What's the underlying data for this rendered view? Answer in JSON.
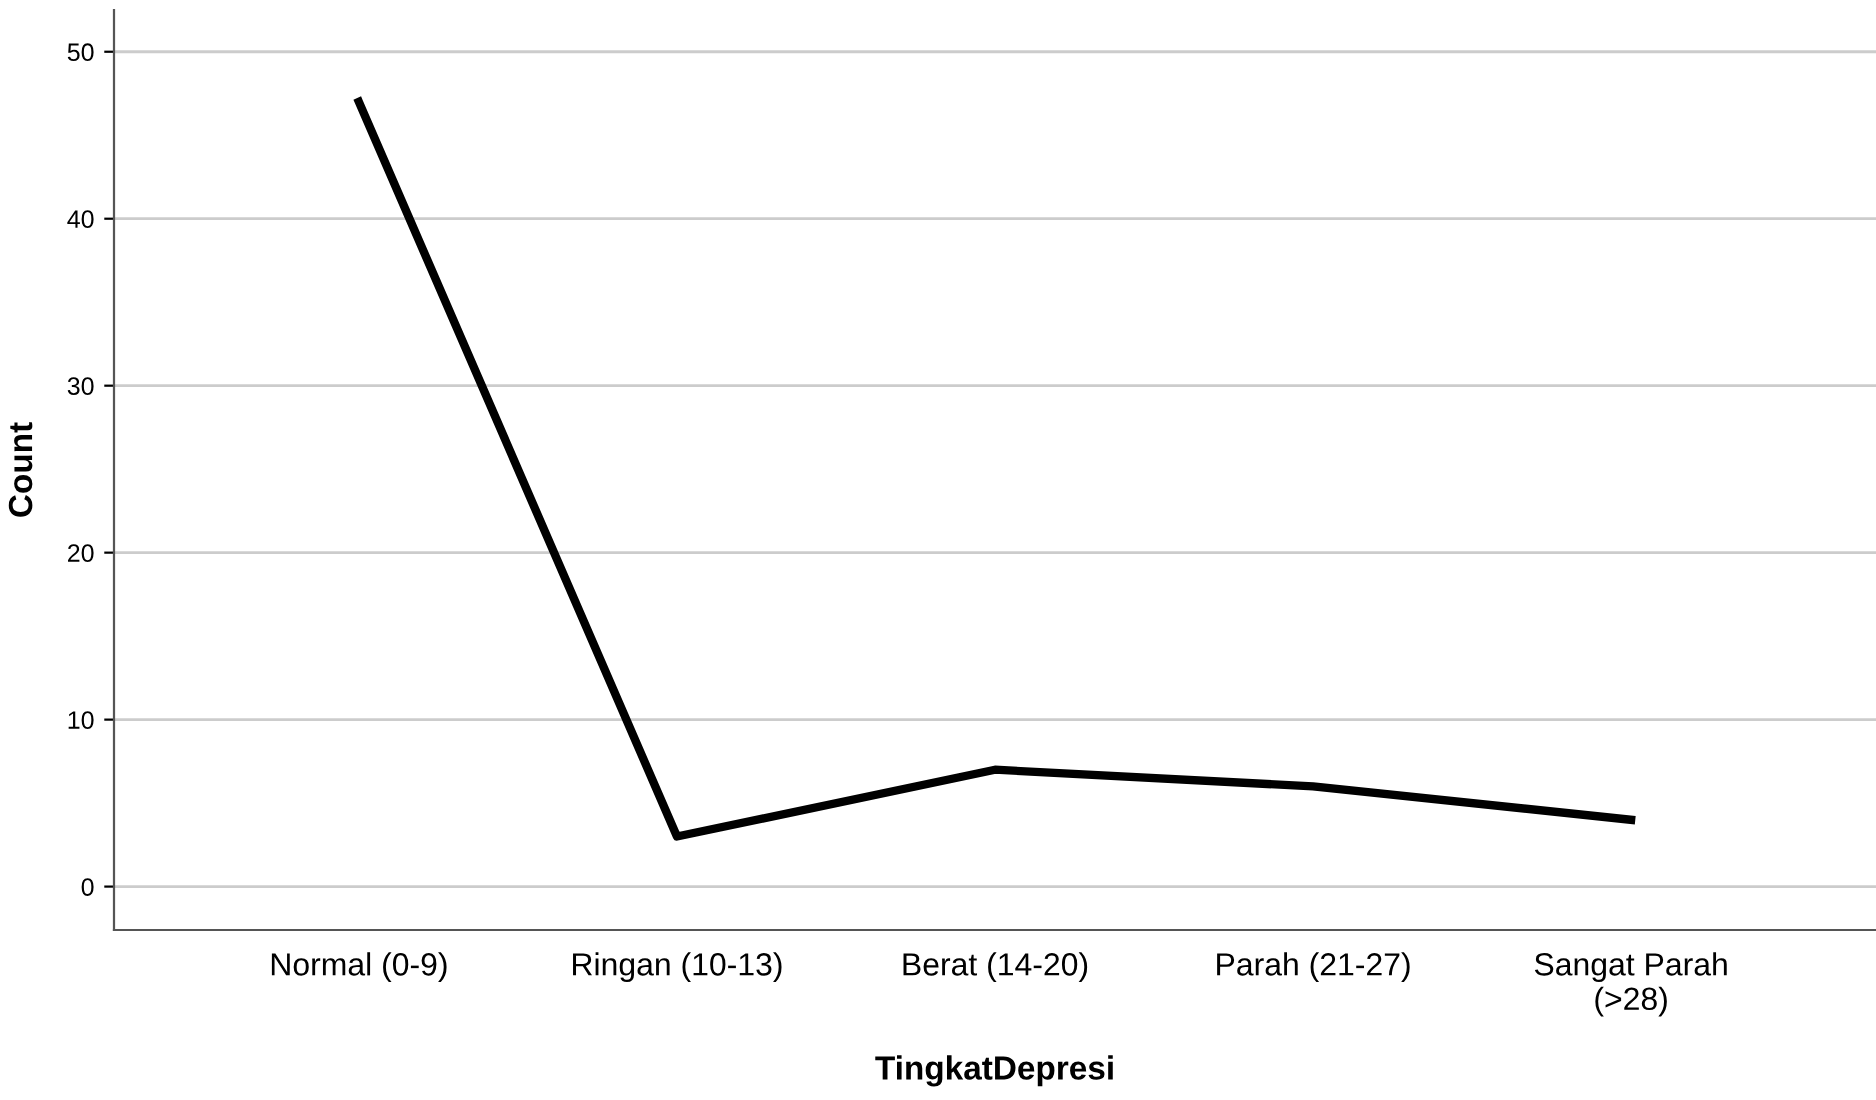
{
  "chart_data": {
    "type": "line",
    "xlabel": "TingkatDepresi",
    "ylabel": "Count",
    "categories": [
      "Normal (0-9)",
      "Ringan (10-13)",
      "Berat (14-20)",
      "Parah (21-27)",
      "Sangat Parah (>28)"
    ],
    "series": [
      {
        "color": "#000000",
        "values": [
          47,
          3,
          7,
          6,
          4
        ]
      }
    ],
    "ylim": [
      -2.6,
      52.5
    ],
    "yticks": [
      0,
      10,
      20,
      30,
      40,
      50
    ],
    "grid": "y",
    "line_style": "solid"
  }
}
